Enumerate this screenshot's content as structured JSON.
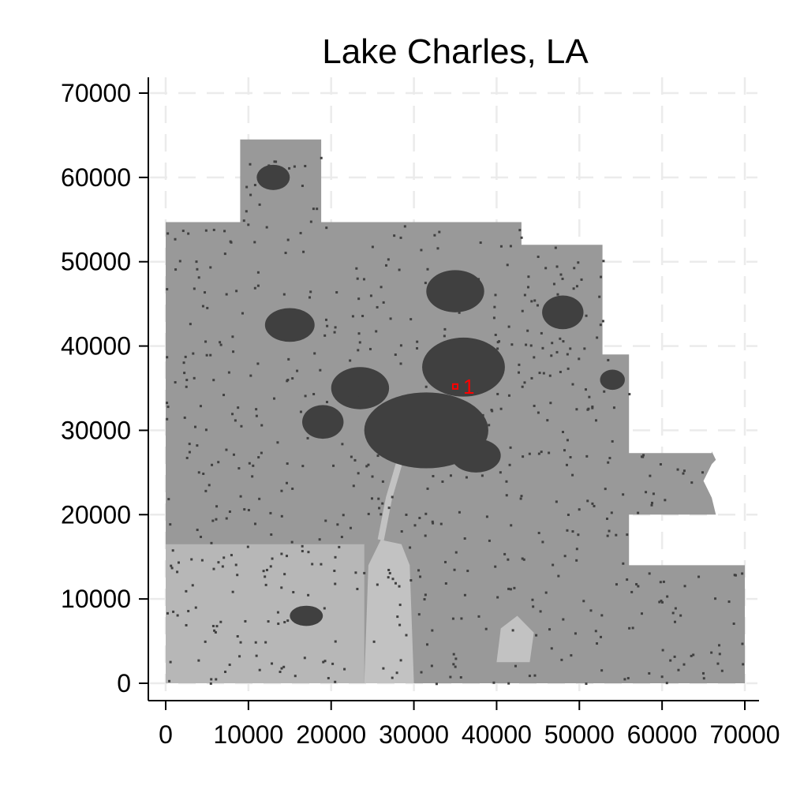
{
  "chart_data": {
    "type": "map",
    "title": "Lake Charles, LA",
    "xlabel": "",
    "ylabel": "",
    "xlim": [
      -2000,
      72000
    ],
    "ylim": [
      -2000,
      72000
    ],
    "x_ticks": [
      0,
      10000,
      20000,
      30000,
      40000,
      50000,
      60000,
      70000
    ],
    "y_ticks": [
      0,
      10000,
      20000,
      30000,
      40000,
      50000,
      60000,
      70000
    ],
    "x_tick_labels": [
      "0",
      "10000",
      "20000",
      "30000",
      "40000",
      "50000",
      "60000",
      "70000"
    ],
    "y_tick_labels": [
      "0",
      "10000",
      "20000",
      "30000",
      "40000",
      "50000",
      "60000",
      "70000"
    ],
    "grid": true,
    "region_outline": [
      [
        0,
        0
      ],
      [
        70000,
        0
      ],
      [
        70000,
        14000
      ],
      [
        56000,
        14000
      ],
      [
        56000,
        20000
      ],
      [
        66500,
        20000
      ],
      [
        66000,
        22000
      ],
      [
        65000,
        24000
      ],
      [
        66000,
        26000
      ],
      [
        66500,
        26500
      ],
      [
        66000,
        27500
      ],
      [
        66000,
        27300
      ],
      [
        56000,
        27300
      ],
      [
        56000,
        39000
      ],
      [
        52800,
        39000
      ],
      [
        52800,
        52000
      ],
      [
        43000,
        52000
      ],
      [
        43000,
        54700
      ],
      [
        18800,
        54700
      ],
      [
        18800,
        64500
      ],
      [
        9000,
        64500
      ],
      [
        9000,
        54700
      ],
      [
        0,
        54700
      ]
    ],
    "developed_areas": [
      {
        "cx": 31500,
        "cy": 30000,
        "rx": 7500,
        "ry": 4500
      },
      {
        "cx": 36000,
        "cy": 37500,
        "rx": 5000,
        "ry": 3500
      },
      {
        "cx": 23500,
        "cy": 35000,
        "rx": 3500,
        "ry": 2500
      },
      {
        "cx": 35000,
        "cy": 46500,
        "rx": 3500,
        "ry": 2500
      },
      {
        "cx": 37500,
        "cy": 27000,
        "rx": 3000,
        "ry": 2000
      },
      {
        "cx": 15000,
        "cy": 42500,
        "rx": 3000,
        "ry": 2000
      },
      {
        "cx": 13000,
        "cy": 60000,
        "rx": 2000,
        "ry": 1500
      },
      {
        "cx": 54000,
        "cy": 36000,
        "rx": 1500,
        "ry": 1200
      },
      {
        "cx": 19000,
        "cy": 31000,
        "rx": 2500,
        "ry": 2000
      },
      {
        "cx": 48000,
        "cy": 44000,
        "rx": 2500,
        "ry": 2000
      },
      {
        "cx": 17000,
        "cy": 8000,
        "rx": 2000,
        "ry": 1200
      }
    ],
    "point_markers": [
      {
        "label": "1",
        "x": 35000,
        "y": 35200
      }
    ],
    "colors": {
      "region_fill": "#999999",
      "developed_fill": "#404040",
      "water_fill": "#c2c2c2",
      "marker_color": "#ff0000",
      "background": "#ffffff"
    }
  }
}
